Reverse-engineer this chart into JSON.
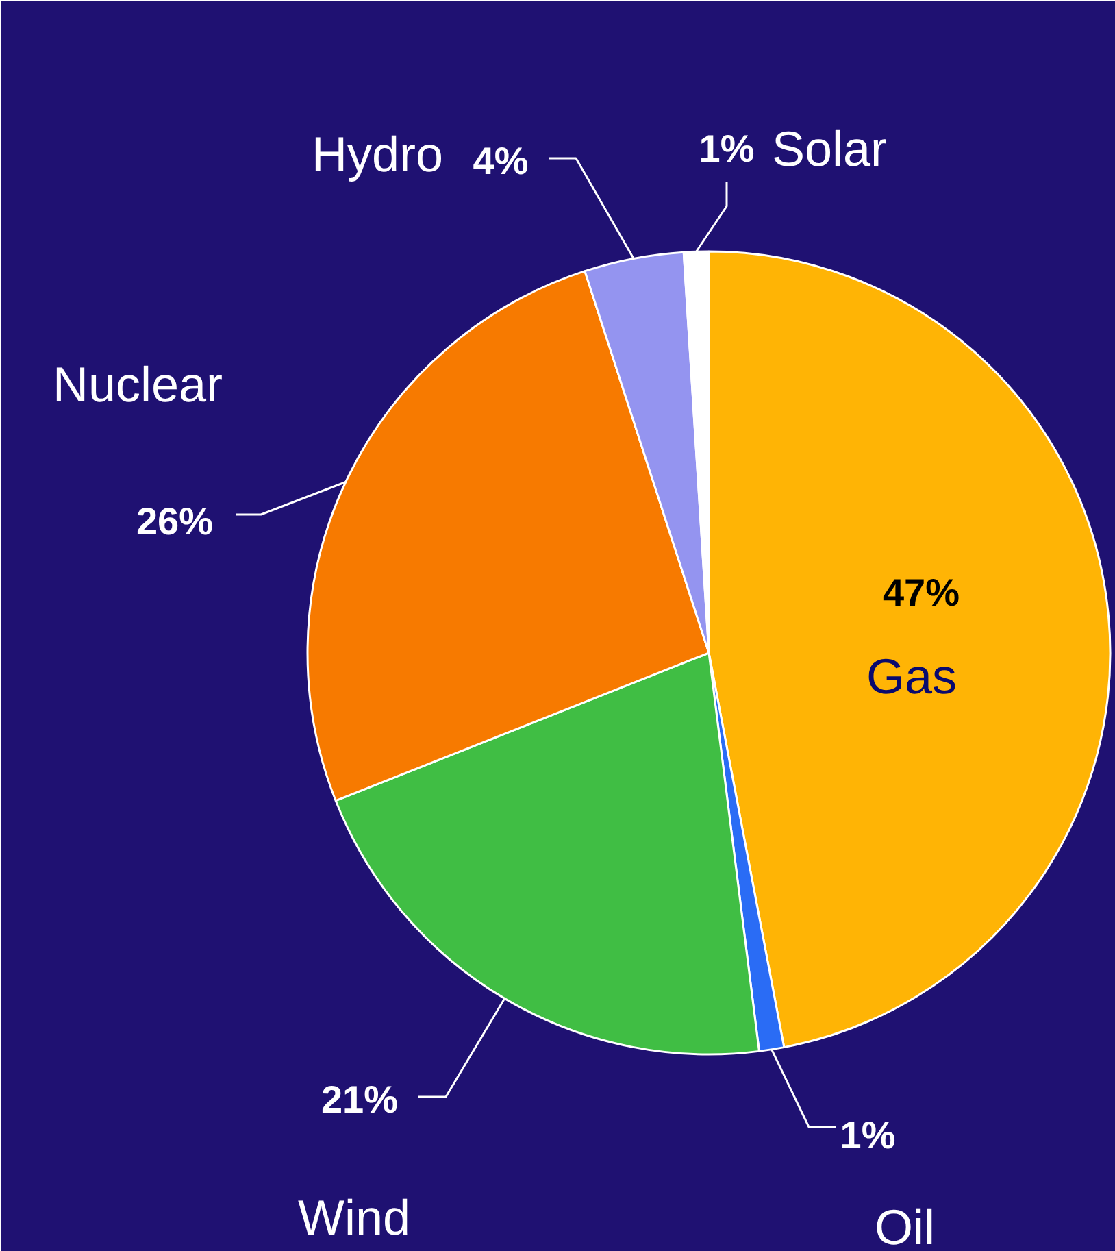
{
  "chart_data": {
    "type": "pie",
    "categories": [
      "Gas",
      "Oil",
      "Wind",
      "Nuclear",
      "Hydro",
      "Solar"
    ],
    "values": [
      47,
      1,
      21,
      26,
      4,
      1
    ],
    "value_labels": [
      "47%",
      "1%",
      "21%",
      "26%",
      "4%",
      "1%"
    ],
    "colors": [
      "#ffb405",
      "#2a6cf5",
      "#40be44",
      "#f77a00",
      "#9494f0",
      "#ffffff"
    ]
  }
}
